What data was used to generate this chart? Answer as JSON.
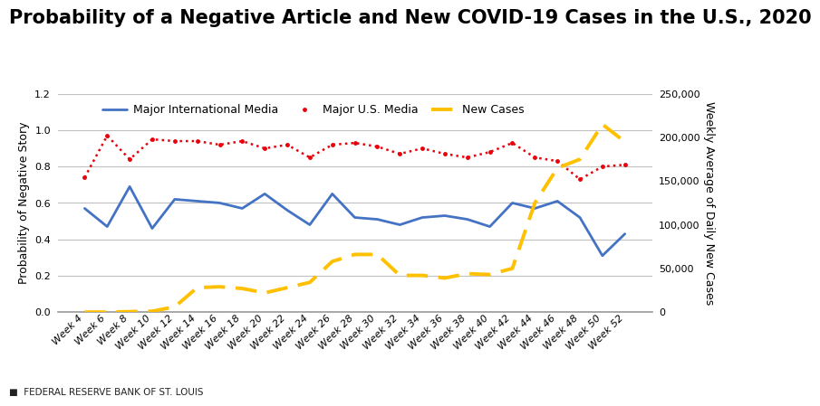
{
  "title": "Probability of a Negative Article and New COVID-19 Cases in the U.S., 2020",
  "ylabel_left": "Probability of Negative Story",
  "ylabel_right": "Weekly Average of Daily New Cases",
  "footer": "■  FEDERAL RESERVE BANK OF ST. LOUIS",
  "weeks": [
    "Week 4",
    "Week 6",
    "Week 8",
    "Week 10",
    "Week 12",
    "Week 14",
    "Week 16",
    "Week 18",
    "Week 20",
    "Week 22",
    "Week 24",
    "Week 26",
    "Week 28",
    "Week 30",
    "Week 32",
    "Week 34",
    "Week 36",
    "Week 38",
    "Week 40",
    "Week 42",
    "Week 44",
    "Week 46",
    "Week 48",
    "Week 50",
    "Week 52"
  ],
  "intl_media": [
    0.57,
    0.47,
    0.69,
    0.46,
    0.62,
    0.61,
    0.6,
    0.57,
    0.65,
    0.56,
    0.48,
    0.65,
    0.52,
    0.51,
    0.48,
    0.52,
    0.53,
    0.51,
    0.47,
    0.6,
    0.57,
    0.61,
    0.52,
    0.31,
    0.43
  ],
  "us_media": [
    0.74,
    0.97,
    0.84,
    0.95,
    0.94,
    0.94,
    0.92,
    0.94,
    0.9,
    0.92,
    0.85,
    0.92,
    0.93,
    0.91,
    0.87,
    0.9,
    0.87,
    0.85,
    0.88,
    0.93,
    0.85,
    0.83,
    0.73,
    0.8,
    0.81
  ],
  "new_cases_raw": [
    0,
    0,
    500,
    1000,
    6000,
    28000,
    29000,
    27000,
    22000,
    28000,
    34000,
    58000,
    66000,
    66000,
    42000,
    42000,
    39000,
    44000,
    43000,
    50000,
    125000,
    165000,
    175000,
    215000,
    195000
  ],
  "intl_color": "#4472C4",
  "us_color": "#E8000B",
  "cases_color": "#FFC000",
  "background_color": "#FFFFFF",
  "ylim_left": [
    0.0,
    1.2
  ],
  "ylim_right": [
    0,
    250000
  ],
  "yticks_left": [
    0.0,
    0.2,
    0.4,
    0.6,
    0.8,
    1.0,
    1.2
  ],
  "yticks_right": [
    0,
    50000,
    100000,
    150000,
    200000,
    250000
  ],
  "grid_color": "#C0C0C0",
  "title_fontsize": 15,
  "axis_label_fontsize": 9,
  "tick_fontsize": 8,
  "legend_fontsize": 9,
  "footer_fontsize": 7.5
}
